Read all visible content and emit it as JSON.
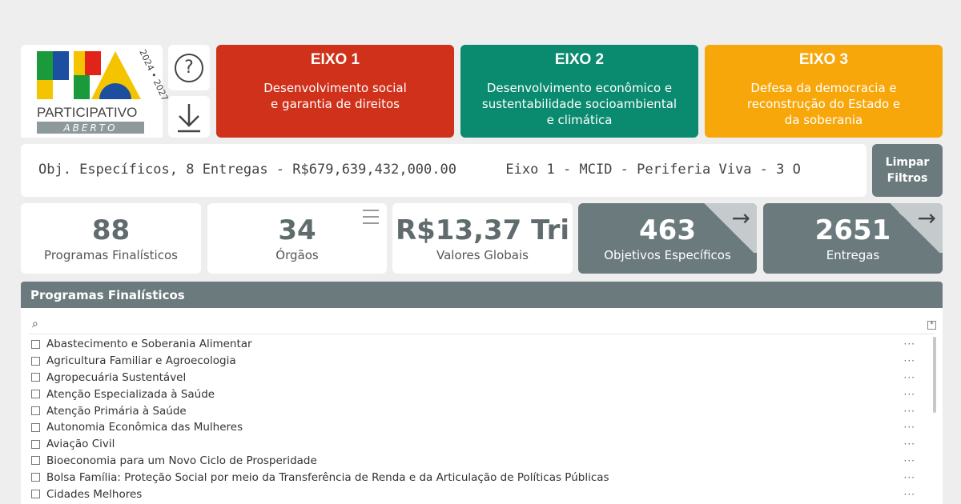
{
  "logo": {
    "text": "PARTICIPATIVO",
    "sub": "ABERTO",
    "years": "2024 • 2027",
    "colors": [
      "#1a9a3a",
      "#1d4fa0",
      "#f5c400",
      "#e2231a"
    ]
  },
  "buttons": {
    "help_icon": "question-circle-icon",
    "download_icon": "download-icon",
    "clear_filters": "Limpar\nFiltros"
  },
  "eixos": [
    {
      "title": "EIXO 1",
      "desc": "Desenvolvimento social\ne garantia de direitos",
      "color": "#d0311a"
    },
    {
      "title": "EIXO 2",
      "desc": "Desenvolvimento econômico e\nsustentabilidade socioambiental\ne climática",
      "color": "#0a8a6e"
    },
    {
      "title": "EIXO 3",
      "desc": "Defesa da democracia e\nreconstrução do Estado e\nda soberania",
      "color": "#f7a70a"
    }
  ],
  "ticker": "Obj. Específicos, 8 Entregas - R$679,639,432,000.00      Eixo 1 - MCID - Periferia Viva - 3 O",
  "kpis": [
    {
      "value": "88",
      "label": "Programas Finalísticos"
    },
    {
      "value": "34",
      "label": "Órgãos"
    },
    {
      "value": "R$13,37 Tri",
      "label": "Valores Globais"
    },
    {
      "value": "463",
      "label": "Objetivos Específicos"
    },
    {
      "value": "2651",
      "label": "Entregas"
    }
  ],
  "panel": {
    "title": "Programas Finalísticos",
    "items": [
      "Abastecimento e Soberania Alimentar",
      "Agricultura Familiar e Agroecologia",
      "Agropecuária Sustentável",
      "Atenção Especializada à Saúde",
      "Atenção Primária à Saúde",
      "Autonomia Econômica das Mulheres",
      "Aviação Civil",
      "Bioeconomia para um Novo Ciclo de Prosperidade",
      "Bolsa Família: Proteção Social por meio da Transferência de Renda e da Articulação de Políticas Públicas",
      "Cidades Melhores"
    ]
  }
}
